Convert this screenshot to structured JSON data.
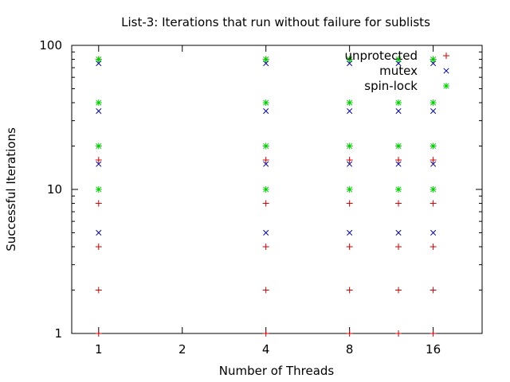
{
  "chart_data": {
    "type": "scatter",
    "title": "List-3: Iterations that run without failure for sublists",
    "xlabel": "Number of Threads",
    "ylabel": "Successful Iterations",
    "x_scale": "log2",
    "y_scale": "log10",
    "xlim": [
      0.8,
      24
    ],
    "ylim": [
      1,
      100
    ],
    "x_ticks": [
      1,
      2,
      4,
      8,
      16
    ],
    "x_tick_labels": [
      "1",
      "2",
      "4",
      "8",
      "16"
    ],
    "y_ticks": [
      1,
      10,
      100
    ],
    "y_tick_labels": [
      "1",
      "10",
      "100"
    ],
    "legend_position": "top-right",
    "grid": false,
    "series": [
      {
        "name": "unprotected",
        "marker": "plus",
        "color": "#cc0000",
        "x": [
          1,
          1,
          1,
          1,
          1,
          1,
          4,
          4,
          4,
          4,
          4,
          4,
          8,
          8,
          8,
          8,
          8,
          8,
          12,
          12,
          12,
          12,
          12,
          12,
          16,
          16,
          16,
          16,
          16,
          16
        ],
        "y": [
          1,
          2,
          4,
          8,
          16,
          80,
          1,
          2,
          4,
          8,
          16,
          80,
          1,
          2,
          4,
          8,
          16,
          80,
          1,
          2,
          4,
          8,
          16,
          80,
          1,
          2,
          4,
          8,
          16,
          80
        ]
      },
      {
        "name": "mutex",
        "marker": "cross",
        "color": "#000099",
        "x": [
          1,
          1,
          1,
          1,
          4,
          4,
          4,
          4,
          8,
          8,
          8,
          8,
          12,
          12,
          12,
          12,
          16,
          16,
          16,
          16
        ],
        "y": [
          5,
          15,
          35,
          75,
          5,
          15,
          35,
          75,
          5,
          15,
          35,
          75,
          5,
          15,
          35,
          75,
          5,
          15,
          35,
          75
        ]
      },
      {
        "name": "spin-lock",
        "marker": "star",
        "color": "#00cc00",
        "x": [
          1,
          1,
          1,
          1,
          4,
          4,
          4,
          4,
          8,
          8,
          8,
          8,
          12,
          12,
          12,
          12,
          16,
          16,
          16,
          16
        ],
        "y": [
          10,
          20,
          40,
          80,
          10,
          20,
          40,
          80,
          10,
          20,
          40,
          80,
          10,
          20,
          40,
          80,
          10,
          20,
          40,
          80
        ]
      }
    ]
  }
}
